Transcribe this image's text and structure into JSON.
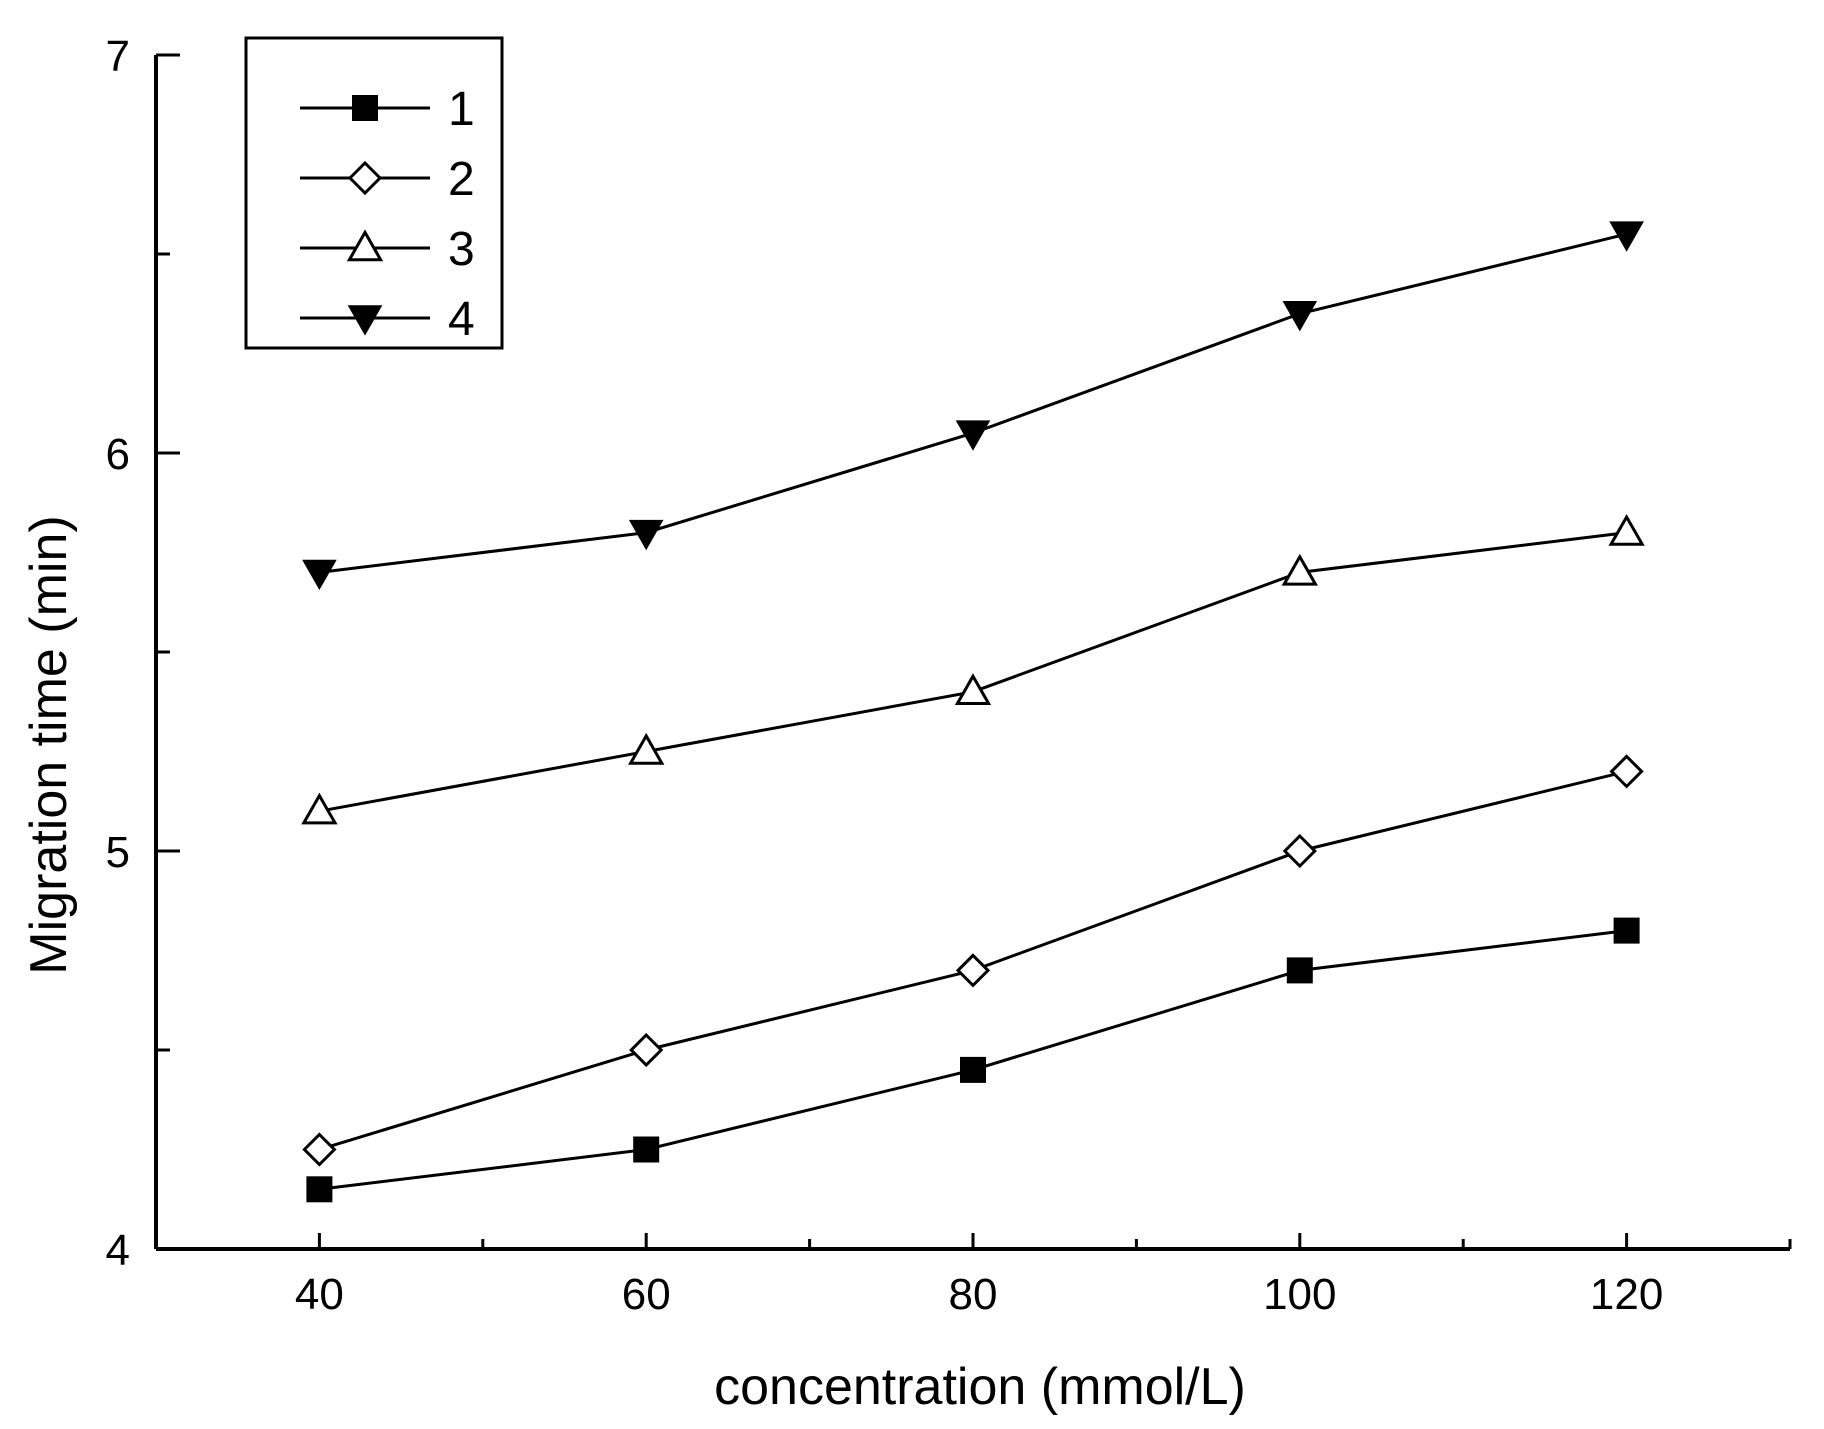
{
  "chart_data": {
    "type": "line",
    "title": "",
    "xlabel": "concentration (mmol/L)",
    "ylabel": "Migration time (min)",
    "x": [
      40,
      60,
      80,
      100,
      120
    ],
    "xlim": [
      30,
      130
    ],
    "ylim": [
      4,
      7
    ],
    "x_ticks": [
      "40",
      "60",
      "80",
      "100",
      "120"
    ],
    "y_ticks": [
      "4",
      "5",
      "6",
      "7"
    ],
    "grid": false,
    "legend_position": "top-left",
    "series": [
      {
        "name": "1",
        "marker": "filled-square",
        "values": [
          4.15,
          4.25,
          4.45,
          4.7,
          4.8
        ]
      },
      {
        "name": "2",
        "marker": "open-diamond",
        "values": [
          4.25,
          4.5,
          4.7,
          5.0,
          5.2
        ]
      },
      {
        "name": "3",
        "marker": "open-triangle-up",
        "values": [
          5.1,
          5.25,
          5.4,
          5.7,
          5.8
        ]
      },
      {
        "name": "4",
        "marker": "filled-triangle-down",
        "values": [
          5.7,
          5.8,
          6.05,
          6.35,
          6.55
        ]
      }
    ],
    "colors": {
      "line": "#000000",
      "background": "#ffffff"
    }
  }
}
